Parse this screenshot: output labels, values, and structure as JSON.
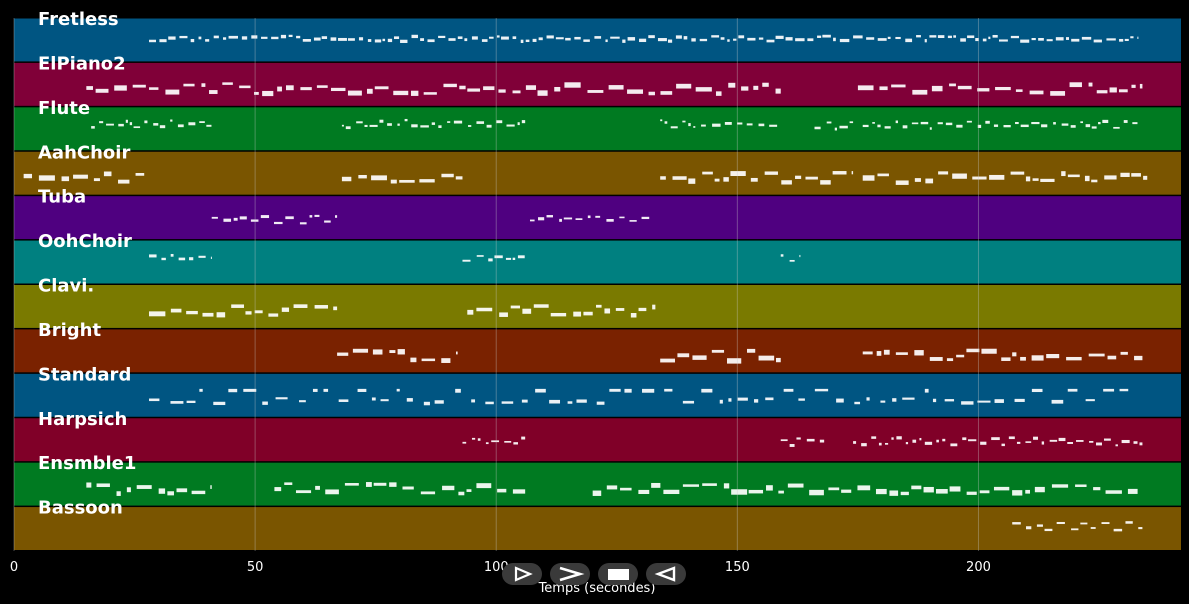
{
  "chart_data": {
    "type": "piano-roll",
    "xlabel": "Temps (secondes)",
    "xlim": [
      0,
      242
    ],
    "xticks": [
      0,
      50,
      100,
      150,
      200
    ],
    "grid": true,
    "tracks": [
      {
        "name": "Fretless",
        "color": "#005582",
        "segments": [
          [
            28,
            233
          ]
        ],
        "register": "mid",
        "density": "dense-thin"
      },
      {
        "name": "ElPiano2",
        "color": "#800038",
        "segments": [
          [
            15,
            28
          ],
          [
            28,
            94
          ],
          [
            94,
            159
          ],
          [
            175,
            234
          ]
        ],
        "register": "mid",
        "density": "block"
      },
      {
        "name": "Flute",
        "color": "#007a21",
        "segments": [
          [
            16,
            41
          ],
          [
            68,
            80
          ],
          [
            81,
            106
          ],
          [
            134,
            159
          ],
          [
            166,
            174
          ],
          [
            176,
            233
          ]
        ],
        "register": "high",
        "density": "thin"
      },
      {
        "name": "AahChoir",
        "color": "#7a5500",
        "segments": [
          [
            2,
            27
          ],
          [
            68,
            93
          ],
          [
            134,
            174
          ],
          [
            176,
            235
          ]
        ],
        "register": "mid",
        "density": "block"
      },
      {
        "name": "Tuba",
        "color": "#4f0080",
        "segments": [
          [
            41,
            67
          ],
          [
            107,
            132
          ]
        ],
        "register": "mid",
        "density": "thin"
      },
      {
        "name": "OohChoir",
        "color": "#008080",
        "segments": [
          [
            28,
            41
          ],
          [
            93,
            106
          ],
          [
            159,
            163
          ]
        ],
        "register": "high",
        "density": "thin"
      },
      {
        "name": "Clavi.",
        "color": "#7a7a00",
        "segments": [
          [
            28,
            67
          ],
          [
            94,
            133
          ]
        ],
        "register": "mid",
        "density": "block"
      },
      {
        "name": "Bright",
        "color": "#7a2200",
        "segments": [
          [
            67,
            92
          ],
          [
            134,
            159
          ],
          [
            176,
            234
          ]
        ],
        "register": "mid",
        "density": "block"
      },
      {
        "name": "Standard",
        "color": "#005582",
        "segments": [
          [
            28,
            232
          ]
        ],
        "register": "mid",
        "density": "drums"
      },
      {
        "name": "Harpsich",
        "color": "#800028",
        "segments": [
          [
            93,
            106
          ],
          [
            159,
            168
          ],
          [
            174,
            234
          ]
        ],
        "register": "mid",
        "density": "thin"
      },
      {
        "name": "Ensmble1",
        "color": "#007a21",
        "segments": [
          [
            15,
            41
          ],
          [
            54,
            106
          ],
          [
            120,
            233
          ]
        ],
        "register": "mid",
        "density": "block"
      },
      {
        "name": "Bassoon",
        "color": "#7a5500",
        "segments": [
          [
            207,
            234
          ]
        ],
        "register": "low",
        "density": "thin"
      }
    ]
  },
  "controls": {
    "play_icon": "play-outline-icon",
    "forward_icon": "chevron-right-icon",
    "stop_icon": "stop-icon",
    "back_icon": "triangle-left-icon"
  }
}
